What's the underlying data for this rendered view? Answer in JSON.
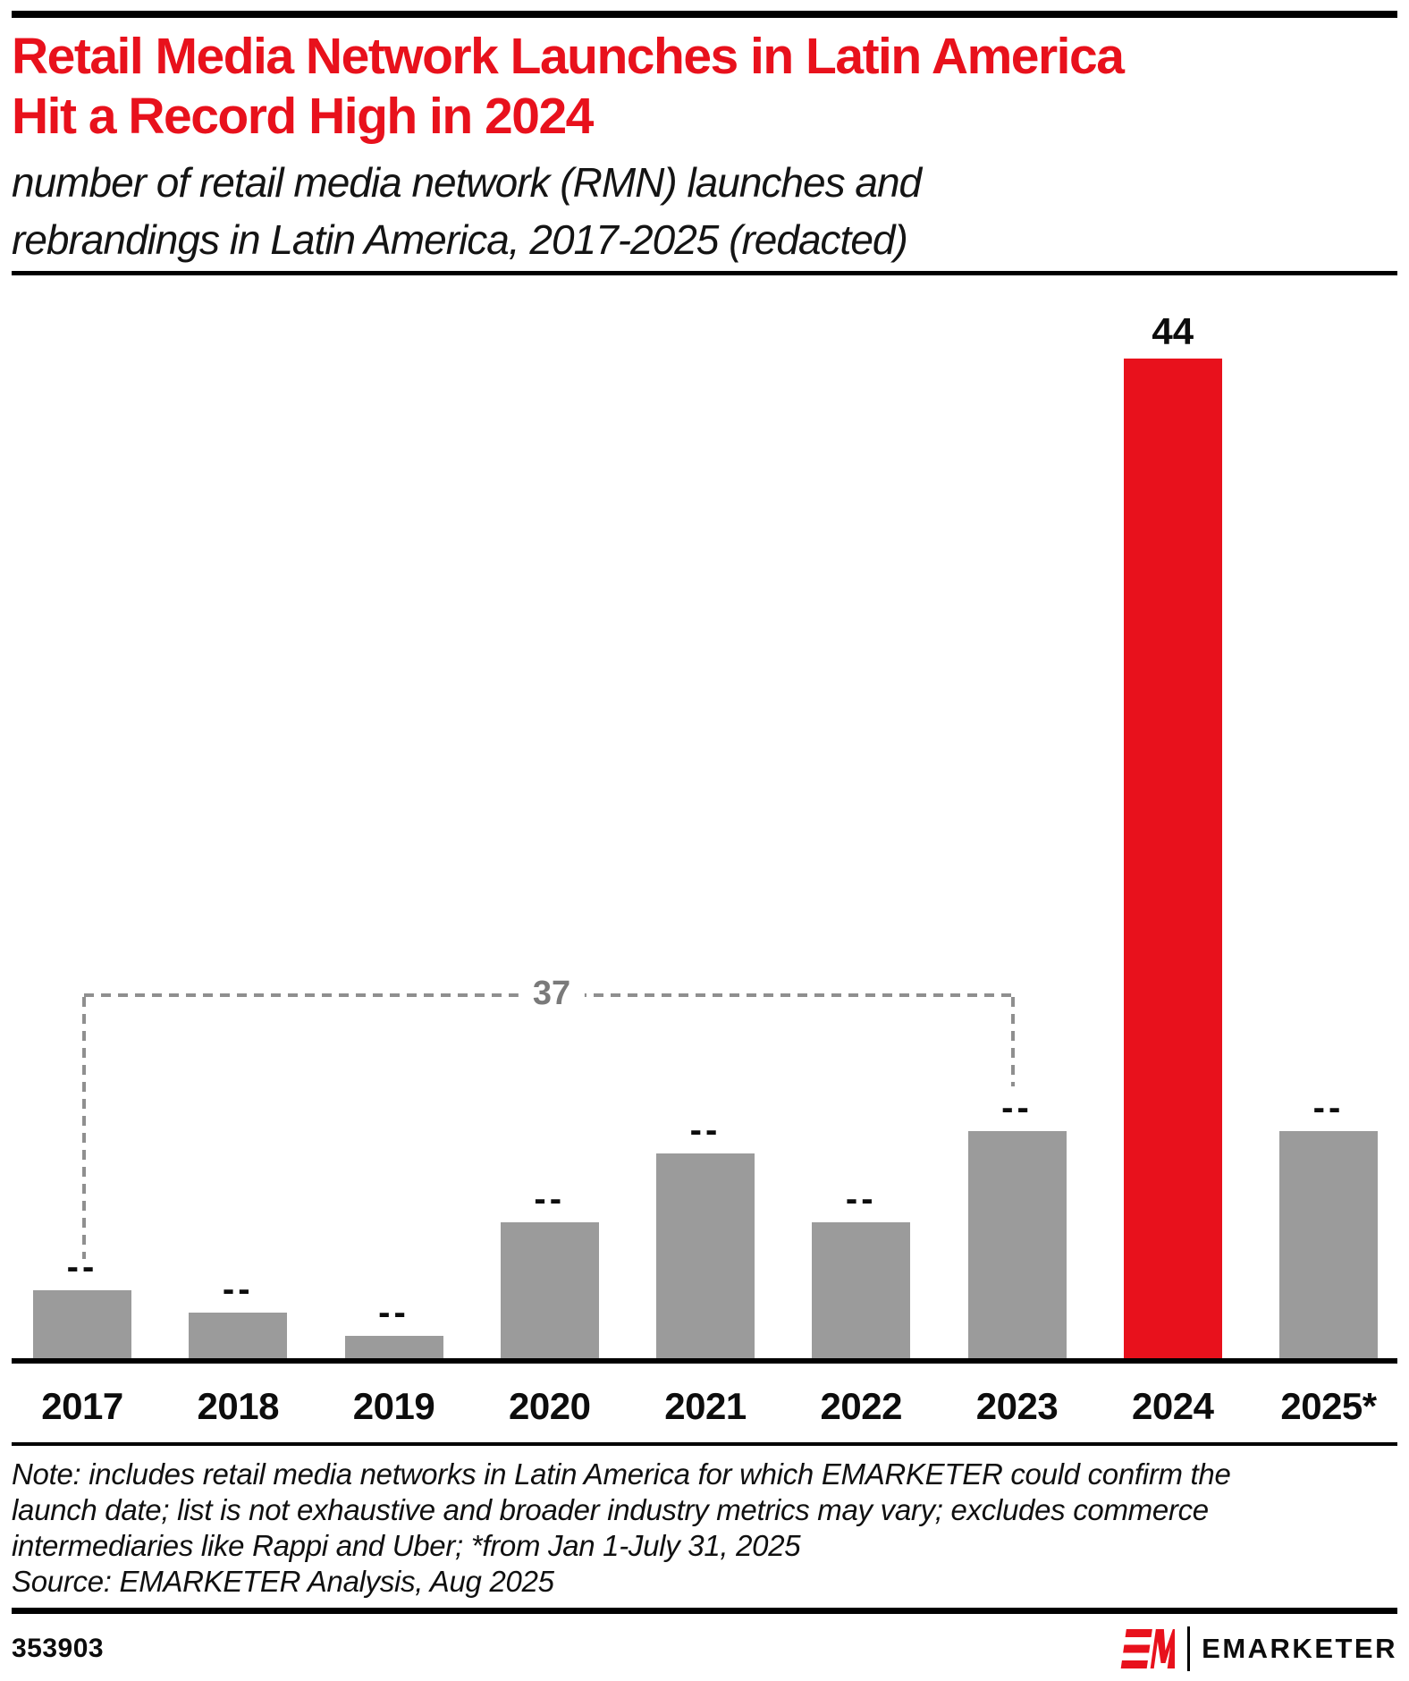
{
  "page": {
    "title_lines": [
      "Retail Media Network Launches in Latin America",
      "Hit a Record High in 2024"
    ],
    "subtitle_lines": [
      "number of retail media network (RMN) launches and",
      "rebrandings in Latin America, 2017-2025 (redacted)"
    ],
    "note_lines": [
      "Note: includes retail media networks in Latin America for which EMARKETER could confirm the",
      "launch date; list is not exhaustive and broader industry metrics may vary; excludes commerce",
      "intermediaries like Rappi and Uber; *from Jan 1-July 31, 2025"
    ],
    "source_line": "Source: EMARKETER Analysis, Aug 2025",
    "footer": {
      "chart_id": "353903",
      "brand": "EMARKETER"
    },
    "colors": {
      "accent_red": "#e8111c",
      "bar_gray": "#9b9b9b",
      "bracket_gray": "#8f8f8f",
      "bracket_label_gray": "#7a7a7a",
      "text_black": "#0d0d0d"
    }
  },
  "chart_data": {
    "type": "bar",
    "title": "Retail Media Network Launches in Latin America Hit a Record High in 2024",
    "subtitle": "number of retail media network (RMN) launches and rebrandings in Latin America, 2017-2025 (redacted)",
    "categories": [
      "2017",
      "2018",
      "2019",
      "2020",
      "2021",
      "2022",
      "2023",
      "2024",
      "2025*"
    ],
    "values": [
      3,
      2,
      1,
      6,
      9,
      6,
      10,
      44,
      10
    ],
    "values_note": "gray-bar values are redacted on the chart; heights estimated from pixels, sum 2017-2023 = 37 per bracket",
    "bar_labels": [
      "--",
      "--",
      "--",
      "--",
      "--",
      "--",
      "--",
      "44",
      "--"
    ],
    "highlighted_category": "2024",
    "highlighted_value": 44,
    "bracket": {
      "label": "37",
      "from_category": "2017",
      "to_category": "2023",
      "meaning": "sum of redacted 2017-2023 values"
    },
    "ylim": [
      0,
      48
    ],
    "grid": "off",
    "legend": "none",
    "xlabel": "",
    "ylabel": ""
  }
}
